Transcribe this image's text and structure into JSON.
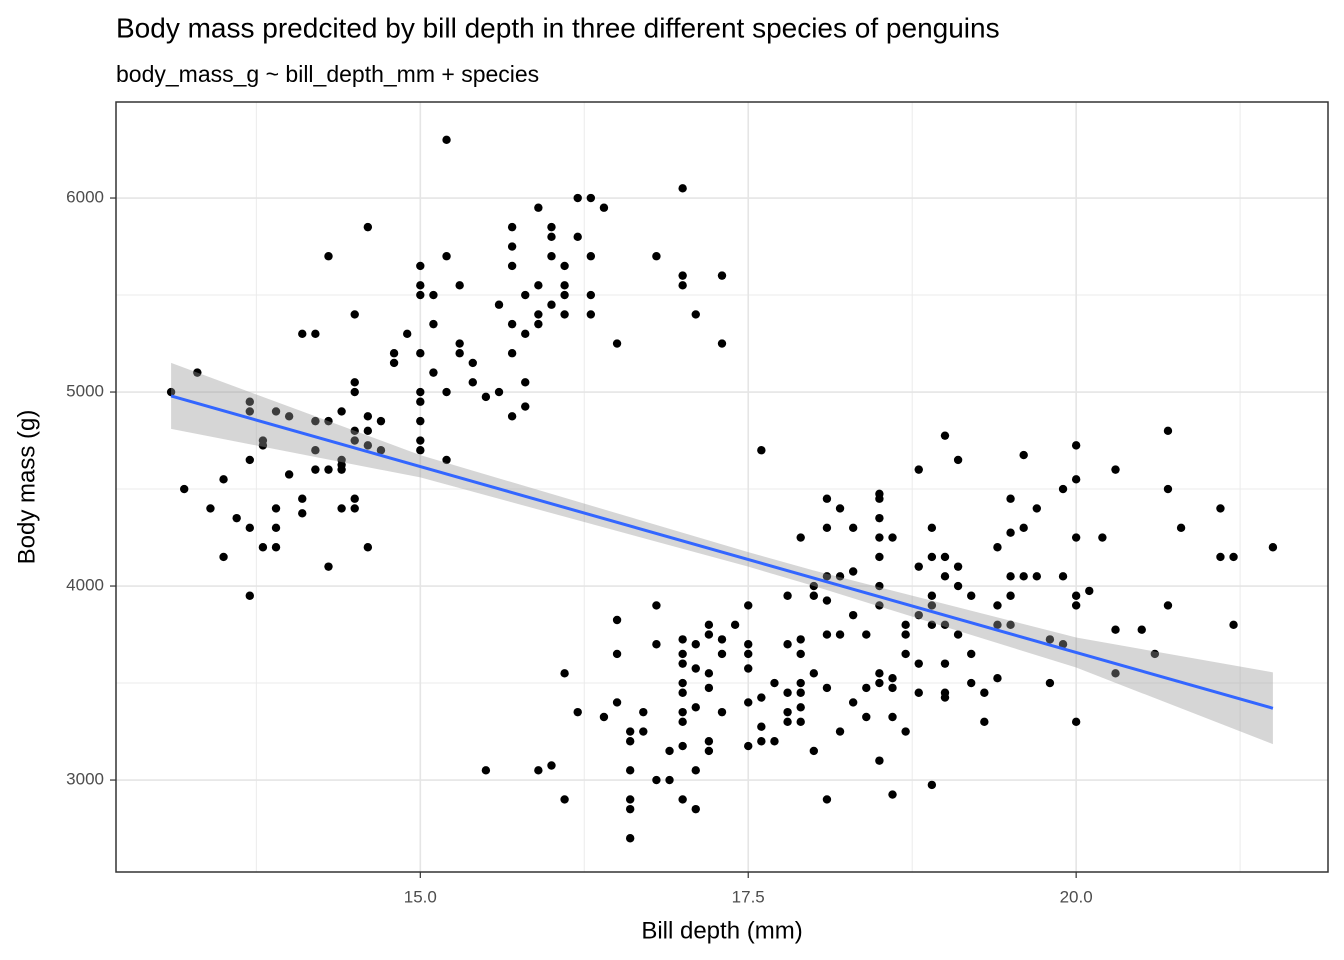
{
  "chart_data": {
    "type": "scatter",
    "title": "Body mass predcited by bill depth in three different species of penguins",
    "subtitle": "body_mass_g  ~ bill_depth_mm + species",
    "x_label": "Bill depth (mm)",
    "y_label": "Body mass (g)",
    "xlim": [
      12.68,
      21.92
    ],
    "ylim": [
      2526,
      6495
    ],
    "xticks": [
      {
        "value": 15,
        "label": "15.0"
      },
      {
        "value": 17.5,
        "label": "17.5"
      },
      {
        "value": 20,
        "label": "20.0"
      }
    ],
    "yticks": [
      3000,
      4000,
      5000,
      6000
    ],
    "minor_xticks": [
      13.75,
      16.25,
      18.75,
      21.25
    ],
    "minor_yticks": [
      3500,
      4500,
      5500
    ],
    "grid": true,
    "point_color": "#000000",
    "x": [
      13.1,
      13.3,
      13.2,
      13.4,
      13.5,
      13.5,
      13.6,
      13.7,
      13.7,
      13.7,
      13.7,
      13.7,
      13.8,
      13.8,
      13.8,
      13.9,
      13.9,
      13.9,
      13.9,
      14.0,
      14.0,
      14.1,
      14.1,
      14.1,
      14.2,
      14.2,
      14.2,
      14.2,
      14.3,
      14.3,
      14.3,
      14.3,
      14.4,
      14.4,
      14.4,
      14.4,
      14.4,
      14.5,
      14.5,
      14.5,
      14.5,
      14.5,
      14.5,
      14.5,
      14.6,
      14.6,
      14.6,
      14.6,
      14.6,
      14.7,
      14.7,
      14.8,
      14.8,
      14.9,
      15.0,
      15.0,
      15.0,
      15.0,
      15.0,
      15.0,
      15.0,
      15.0,
      15.0,
      15.1,
      15.1,
      15.1,
      15.2,
      15.2,
      15.2,
      15.2,
      15.3,
      15.3,
      15.3,
      15.4,
      15.4,
      15.5,
      15.6,
      15.6,
      15.7,
      15.7,
      15.7,
      15.7,
      15.7,
      15.7,
      15.8,
      15.8,
      15.8,
      15.8,
      15.9,
      15.9,
      15.9,
      15.9,
      16.0,
      16.0,
      16.0,
      16.0,
      16.1,
      16.1,
      16.1,
      16.1,
      16.2,
      16.2,
      16.3,
      16.3,
      16.3,
      16.3,
      16.4,
      16.5,
      16.8,
      17.0,
      17.0,
      17.0,
      17.1,
      17.3,
      17.3,
      15.5,
      15.9,
      16.0,
      16.1,
      16.1,
      16.2,
      16.4,
      16.5,
      16.5,
      16.5,
      16.6,
      16.6,
      16.6,
      16.6,
      16.6,
      16.6,
      16.7,
      16.7,
      16.8,
      16.8,
      16.8,
      16.9,
      16.9,
      17.0,
      17.0,
      17.0,
      17.0,
      17.0,
      17.0,
      17.0,
      17.0,
      17.0,
      17.1,
      17.1,
      17.1,
      17.1,
      17.1,
      17.2,
      17.2,
      17.2,
      17.2,
      17.2,
      17.2,
      17.3,
      17.3,
      17.3,
      17.4,
      17.5,
      17.5,
      17.5,
      17.5,
      17.5,
      17.5,
      17.6,
      17.6,
      17.6,
      17.6,
      17.7,
      17.7,
      17.8,
      17.8,
      17.8,
      17.8,
      17.8,
      17.9,
      17.9,
      17.9,
      17.9,
      17.9,
      17.9,
      17.9,
      18.0,
      18.0,
      18.0,
      18.0,
      18.1,
      18.1,
      18.1,
      18.1,
      18.1,
      18.1,
      18.1,
      18.2,
      18.2,
      18.2,
      18.2,
      18.3,
      18.3,
      18.3,
      18.3,
      18.4,
      18.4,
      18.4,
      18.5,
      18.5,
      18.5,
      18.5,
      18.5,
      18.5,
      18.5,
      18.5,
      18.5,
      18.5,
      18.6,
      18.6,
      18.6,
      18.6,
      18.6,
      18.7,
      18.7,
      18.7,
      18.7,
      18.8,
      18.8,
      18.8,
      18.8,
      18.8,
      18.9,
      18.9,
      18.9,
      18.9,
      18.9,
      18.9,
      19.0,
      19.0,
      19.0,
      19.0,
      19.0,
      19.0,
      19.0,
      19.1,
      19.1,
      19.1,
      19.1,
      19.2,
      19.2,
      19.2,
      19.3,
      19.3,
      19.4,
      19.4,
      19.4,
      19.4,
      19.5,
      19.5,
      19.5,
      19.5,
      19.5,
      19.6,
      19.6,
      19.6,
      19.7,
      19.7,
      19.8,
      19.8,
      19.9,
      19.9,
      19.9,
      20.0,
      20.0,
      20.0,
      20.0,
      20.0,
      20.0,
      20.1,
      20.2,
      20.3,
      20.3,
      20.3,
      20.5,
      20.6,
      20.7,
      20.7,
      20.7,
      20.8,
      21.1,
      21.1,
      21.2,
      21.2,
      21.5
    ],
    "values": [
      5000,
      5100,
      4500,
      4400,
      4550,
      4150,
      4350,
      4950,
      4900,
      4650,
      4300,
      3950,
      4750,
      4725,
      4200,
      4900,
      4400,
      4300,
      4200,
      4875,
      4575,
      5300,
      4450,
      4375,
      5300,
      4850,
      4700,
      4600,
      5700,
      4850,
      4600,
      4100,
      4900,
      4650,
      4625,
      4600,
      4400,
      5400,
      5050,
      5000,
      4800,
      4750,
      4450,
      4400,
      5850,
      4875,
      4800,
      4725,
      4200,
      4850,
      4700,
      5200,
      5150,
      5300,
      5650,
      5550,
      5500,
      5200,
      5000,
      4950,
      4850,
      4750,
      4700,
      5500,
      5350,
      5100,
      6300,
      5700,
      5000,
      4650,
      5550,
      5250,
      5200,
      5150,
      5050,
      4975,
      5450,
      5000,
      5850,
      5750,
      5650,
      5350,
      5200,
      4875,
      5500,
      5300,
      5050,
      4925,
      5950,
      5550,
      5400,
      5350,
      5850,
      5800,
      5700,
      5450,
      5650,
      5550,
      5500,
      5400,
      6000,
      5800,
      6000,
      5700,
      5500,
      5400,
      5950,
      5250,
      5700,
      6050,
      5600,
      5550,
      5400,
      5600,
      5250,
      3050,
      3050,
      3075,
      3550,
      2900,
      3350,
      3325,
      3825,
      3650,
      3400,
      3250,
      3200,
      3050,
      2900,
      2850,
      2700,
      3350,
      3250,
      3900,
      3700,
      3000,
      3150,
      3000,
      3725,
      3650,
      3600,
      3500,
      3450,
      3350,
      3300,
      3175,
      2900,
      3700,
      3575,
      3375,
      3050,
      2850,
      3800,
      3750,
      3550,
      3475,
      3200,
      3150,
      3725,
      3650,
      3350,
      3800,
      3900,
      3700,
      3650,
      3575,
      3400,
      3175,
      4700,
      3425,
      3275,
      3200,
      3500,
      3200,
      3950,
      3700,
      3450,
      3350,
      3300,
      4250,
      3725,
      3650,
      3500,
      3450,
      3375,
      3300,
      4000,
      3950,
      3550,
      3150,
      4450,
      4300,
      4050,
      3925,
      3750,
      3475,
      2900,
      4400,
      4050,
      3750,
      3250,
      4300,
      4075,
      3850,
      3400,
      3750,
      3475,
      3325,
      4475,
      4450,
      4350,
      4250,
      4150,
      4000,
      3900,
      3550,
      3500,
      3100,
      4250,
      3525,
      3475,
      3325,
      2925,
      3800,
      3750,
      3650,
      3250,
      4600,
      4100,
      3850,
      3600,
      3450,
      4300,
      4150,
      3950,
      3900,
      3800,
      2975,
      4775,
      4150,
      4050,
      3800,
      3600,
      3450,
      3425,
      4650,
      4100,
      4000,
      3750,
      3950,
      3650,
      3500,
      3450,
      3300,
      4200,
      3900,
      3800,
      3525,
      4450,
      4275,
      4050,
      3950,
      3800,
      4675,
      4300,
      4050,
      4400,
      4050,
      3725,
      3500,
      4500,
      4050,
      3700,
      4725,
      4550,
      4250,
      3950,
      3900,
      3300,
      3975,
      4250,
      4600,
      3775,
      3550,
      3775,
      3650,
      4800,
      4500,
      3900,
      4300,
      4400,
      4150,
      4150,
      3800,
      4200
    ],
    "fit": {
      "color": "#3366ff",
      "x": [
        13.1,
        21.5
      ],
      "values": [
        4980,
        3370
      ]
    },
    "band": {
      "color": "#999999",
      "x": [
        13.1,
        15,
        17.5,
        18,
        20,
        21.5
      ],
      "upper": [
        5150,
        4675,
        4175,
        4080,
        3735,
        3555
      ],
      "lower": [
        4810,
        4560,
        4100,
        4000,
        3580,
        3185
      ]
    }
  }
}
